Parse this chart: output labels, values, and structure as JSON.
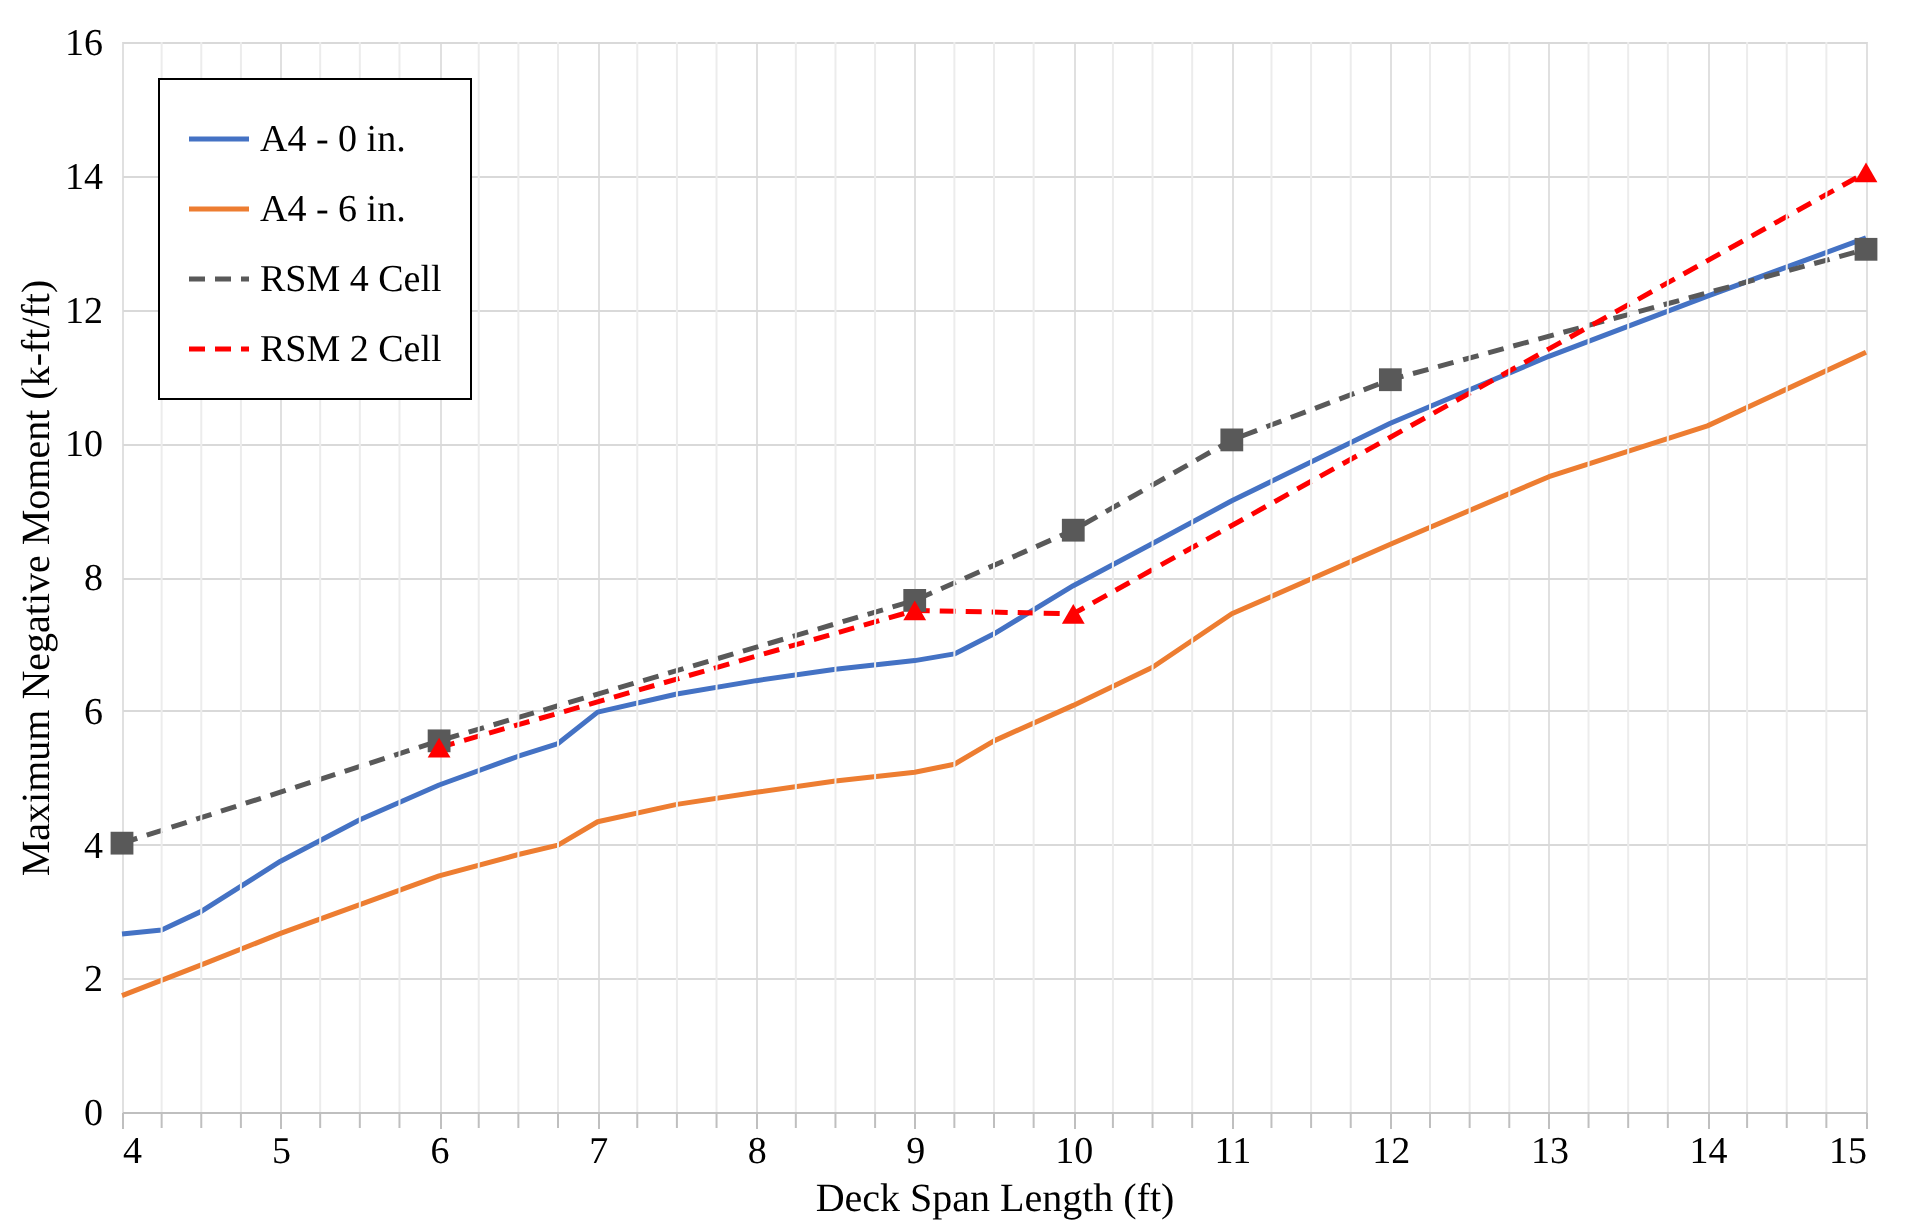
{
  "chart_data": {
    "type": "line",
    "xlabel": "Deck Span Length (ft)",
    "ylabel": "Maximum Negative Moment (k-ft/ft)",
    "xlim": [
      4,
      15
    ],
    "ylim": [
      0,
      16
    ],
    "xticks": [
      4,
      {
        "value": 4.25,
        "label": null
      },
      {
        "value": 4.5,
        "label": null
      },
      {
        "value": 4.75,
        "label": null
      },
      5,
      {
        "value": 5.25,
        "label": null
      },
      {
        "value": 5.5,
        "label": null
      },
      {
        "value": 5.75,
        "label": null
      },
      6,
      {
        "value": 6.25,
        "label": null
      },
      {
        "value": 6.5,
        "label": null
      },
      {
        "value": 6.75,
        "label": null
      },
      7,
      {
        "value": 7.25,
        "label": null
      },
      {
        "value": 7.5,
        "label": null
      },
      {
        "value": 7.75,
        "label": null
      },
      8,
      {
        "value": 8.25,
        "label": null
      },
      {
        "value": 8.5,
        "label": null
      },
      {
        "value": 8.75,
        "label": null
      },
      9,
      {
        "value": 9.25,
        "label": null
      },
      {
        "value": 9.5,
        "label": null
      },
      {
        "value": 9.75,
        "label": null
      },
      10,
      {
        "value": 10.25,
        "label": null
      },
      {
        "value": 10.5,
        "label": null
      },
      {
        "value": 10.75,
        "label": null
      },
      11,
      {
        "value": 11.25,
        "label": null
      },
      {
        "value": 11.5,
        "label": null
      },
      {
        "value": 11.75,
        "label": null
      },
      12,
      {
        "value": 12.25,
        "label": null
      },
      {
        "value": 12.5,
        "label": null
      },
      {
        "value": 12.75,
        "label": null
      },
      13,
      {
        "value": 13.25,
        "label": null
      },
      {
        "value": 13.5,
        "label": null
      },
      {
        "value": 13.75,
        "label": null
      },
      14,
      {
        "value": 14.25,
        "label": null
      },
      {
        "value": 14.5,
        "label": null
      },
      {
        "value": 14.75,
        "label": null
      },
      15
    ],
    "yticks": [
      0,
      2,
      4,
      6,
      8,
      10,
      12,
      14,
      16
    ],
    "grid": true,
    "legend": "top left",
    "series": [
      {
        "name": "A4 - 0 in.",
        "color": "#4472c4",
        "marker": "none",
        "line_style": "solid",
        "x": [
          4,
          4.25,
          4.5,
          5,
          5.5,
          6,
          6.5,
          6.75,
          7,
          7.5,
          8,
          8.5,
          9,
          9.25,
          9.5,
          10,
          10.5,
          11,
          12,
          13,
          14,
          15
        ],
        "values": [
          2.66,
          2.72,
          3.0,
          3.75,
          4.37,
          4.89,
          5.32,
          5.51,
          5.98,
          6.25,
          6.45,
          6.62,
          6.75,
          6.85,
          7.15,
          7.87,
          8.5,
          9.14,
          10.3,
          11.3,
          12.2,
          13.07
        ]
      },
      {
        "name": "A4 - 6 in.",
        "color": "#ed7d31",
        "marker": "none",
        "line_style": "solid",
        "x": [
          4,
          4.5,
          5,
          5.5,
          6,
          6.5,
          6.75,
          7,
          7.5,
          8,
          8.5,
          9,
          9.25,
          9.5,
          10,
          10.5,
          11,
          12,
          13,
          14,
          15
        ],
        "values": [
          1.74,
          2.2,
          2.67,
          3.1,
          3.53,
          3.85,
          3.99,
          4.34,
          4.6,
          4.78,
          4.95,
          5.08,
          5.2,
          5.55,
          6.08,
          6.65,
          7.45,
          8.49,
          9.5,
          10.26,
          11.36
        ]
      },
      {
        "name": "RSM 4 Cell",
        "color": "#595959",
        "marker": "square",
        "line_style": "dashed",
        "x": [
          4,
          6,
          9,
          10,
          11,
          12,
          15
        ],
        "values": [
          4.02,
          5.55,
          7.65,
          8.7,
          10.05,
          10.95,
          12.9
        ]
      },
      {
        "name": "RSM 2 Cell",
        "color": "#ff0000",
        "marker": "triangle",
        "line_style": "dashed",
        "x": [
          6,
          9,
          10,
          15
        ],
        "values": [
          5.45,
          7.5,
          7.45,
          14.05
        ]
      }
    ]
  }
}
